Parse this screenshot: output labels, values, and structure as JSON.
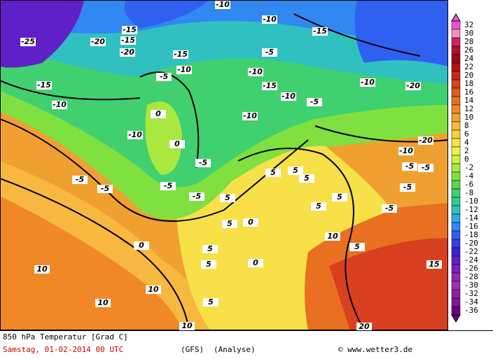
{
  "footer": {
    "title": "850 hPa Temperatur [Grad C]",
    "date": "Samstag, 01-02-2014  00 UTC",
    "model": "(GFS)",
    "run": "(Analyse)",
    "source": "© www.wetter3.de"
  },
  "colorbar": {
    "levels": [
      {
        "value": 32,
        "color": "#f050d0"
      },
      {
        "value": 30,
        "color": "#f090c0"
      },
      {
        "value": 28,
        "color": "#d02060"
      },
      {
        "value": 26,
        "color": "#b01030"
      },
      {
        "value": 24,
        "color": "#a00818"
      },
      {
        "value": 22,
        "color": "#b81010"
      },
      {
        "value": 20,
        "color": "#c82818"
      },
      {
        "value": 18,
        "color": "#d84020"
      },
      {
        "value": 16,
        "color": "#e05a20"
      },
      {
        "value": 14,
        "color": "#e87020"
      },
      {
        "value": 12,
        "color": "#f08828"
      },
      {
        "value": 10,
        "color": "#f0a030"
      },
      {
        "value": 8,
        "color": "#f8b840"
      },
      {
        "value": 6,
        "color": "#f8d040"
      },
      {
        "value": 4,
        "color": "#f8e048"
      },
      {
        "value": 2,
        "color": "#f0f050"
      },
      {
        "value": 0,
        "color": "#d0f048"
      },
      {
        "value": -2,
        "color": "#a8e840"
      },
      {
        "value": -4,
        "color": "#80e040"
      },
      {
        "value": -6,
        "color": "#58d848"
      },
      {
        "value": -8,
        "color": "#40d070"
      },
      {
        "value": -10,
        "color": "#30c898"
      },
      {
        "value": -12,
        "color": "#30c0c0"
      },
      {
        "value": -14,
        "color": "#30a8e0"
      },
      {
        "value": -16,
        "color": "#3088f0"
      },
      {
        "value": -18,
        "color": "#3060f0"
      },
      {
        "value": -20,
        "color": "#3040e0"
      },
      {
        "value": -22,
        "color": "#4020d0"
      },
      {
        "value": -24,
        "color": "#6020c8"
      },
      {
        "value": -26,
        "color": "#8020c0"
      },
      {
        "value": -28,
        "color": "#9028b8"
      },
      {
        "value": -30,
        "color": "#a030b0"
      },
      {
        "value": -32,
        "color": "#9020a0"
      },
      {
        "value": -34,
        "color": "#801890"
      },
      {
        "value": -36,
        "color": "#700080"
      }
    ]
  },
  "map_labels": [
    -25,
    -20,
    -15,
    -15,
    -20,
    -15,
    -10,
    -5,
    -10,
    -10,
    -15,
    -5,
    -10,
    -15,
    -10,
    -5,
    -10,
    -15,
    -10,
    -10,
    -5,
    -5,
    -5,
    -5,
    -5,
    -10,
    -20,
    -20,
    -10,
    -5,
    -5,
    -5,
    -5,
    0,
    0,
    0,
    0,
    0,
    5,
    5,
    5,
    5,
    5,
    5,
    5,
    5,
    5,
    10,
    10,
    10,
    10,
    10,
    15,
    20,
    5,
    5
  ]
}
